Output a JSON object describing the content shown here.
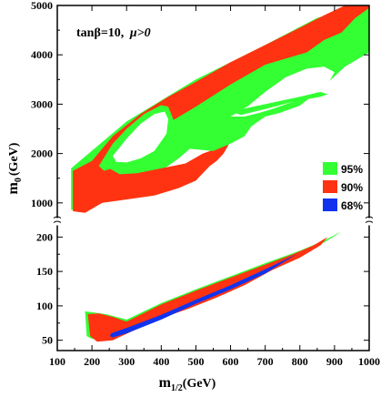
{
  "chart_data": {
    "type": "area",
    "annotation": {
      "pre": "tanβ=10,",
      "post": "μ>0"
    },
    "xlabel": {
      "main": "m",
      "sub": "1/2",
      "unit": "(GeV)"
    },
    "ylabel": {
      "main": "m",
      "sub": "0",
      "unit": "(GeV)"
    },
    "xlim": [
      100,
      1000
    ],
    "x_ticks": [
      100,
      200,
      300,
      400,
      500,
      600,
      700,
      800,
      900,
      1000
    ],
    "x_tick_labels": [
      "100",
      "200",
      "300",
      "400",
      "500",
      "600",
      "700",
      "800",
      "900",
      "1000"
    ],
    "y_axis_split": {
      "lower": {
        "range": [
          35,
          215
        ],
        "ticks": [
          50,
          100,
          150,
          200
        ],
        "tick_labels": [
          "50",
          "100",
          "150",
          "200"
        ]
      },
      "upper": {
        "range": [
          720,
          5000
        ],
        "ticks": [
          1000,
          2000,
          3000,
          4000,
          5000
        ],
        "tick_labels": [
          "1000",
          "2000",
          "3000",
          "4000",
          "5000"
        ]
      }
    },
    "legend": {
      "placement": "right",
      "items": [
        {
          "label": "95%",
          "color": "#33ff33"
        },
        {
          "label": "90%",
          "color": "#ff3311"
        },
        {
          "label": "68%",
          "color": "#1133ee"
        }
      ]
    },
    "regions": [
      {
        "level": "95%",
        "color": "#33ff33",
        "panel": "upper",
        "role": "fill",
        "points": [
          [
            140,
            1700
          ],
          [
            300,
            2650
          ],
          [
            500,
            3500
          ],
          [
            700,
            4200
          ],
          [
            850,
            4750
          ],
          [
            990,
            5000
          ],
          [
            1000,
            5000
          ],
          [
            1000,
            4050
          ],
          [
            930,
            3760
          ],
          [
            860,
            3300
          ],
          [
            780,
            3130
          ],
          [
            700,
            2870
          ],
          [
            600,
            2600
          ],
          [
            500,
            2200
          ],
          [
            450,
            1900
          ],
          [
            380,
            1550
          ],
          [
            290,
            1200
          ],
          [
            240,
            1080
          ],
          [
            175,
            850
          ],
          [
            140,
            860
          ]
        ]
      },
      {
        "level": "90%",
        "color": "#ff3311",
        "panel": "upper",
        "role": "fill",
        "points": [
          [
            145,
            1650
          ],
          [
            200,
            1850
          ],
          [
            260,
            2350
          ],
          [
            340,
            2800
          ],
          [
            420,
            3150
          ],
          [
            500,
            3450
          ],
          [
            600,
            3850
          ],
          [
            700,
            4200
          ],
          [
            800,
            4550
          ],
          [
            870,
            4800
          ],
          [
            930,
            5000
          ],
          [
            1000,
            5000
          ],
          [
            1000,
            4950
          ],
          [
            960,
            4750
          ],
          [
            920,
            4450
          ],
          [
            870,
            4300
          ],
          [
            820,
            4050
          ],
          [
            700,
            3800
          ],
          [
            600,
            3400
          ],
          [
            500,
            2950
          ],
          [
            440,
            2700
          ],
          [
            380,
            2500
          ],
          [
            330,
            2300
          ],
          [
            290,
            2050
          ],
          [
            260,
            1950
          ],
          [
            250,
            1700
          ],
          [
            280,
            1580
          ],
          [
            330,
            1600
          ],
          [
            400,
            1700
          ],
          [
            470,
            1800
          ],
          [
            520,
            2000
          ],
          [
            580,
            2150
          ],
          [
            600,
            2250
          ],
          [
            580,
            2000
          ],
          [
            560,
            1850
          ],
          [
            540,
            1750
          ],
          [
            500,
            1450
          ],
          [
            450,
            1300
          ],
          [
            380,
            1150
          ],
          [
            280,
            1050
          ],
          [
            230,
            1000
          ],
          [
            180,
            800
          ],
          [
            145,
            830
          ]
        ]
      },
      {
        "level": "95%",
        "color": "#33ff33",
        "panel": "upper",
        "role": "fill",
        "points": [
          [
            470,
            2400
          ],
          [
            560,
            2720
          ],
          [
            650,
            3050
          ],
          [
            720,
            3380
          ],
          [
            780,
            3700
          ],
          [
            840,
            3850
          ],
          [
            880,
            3830
          ],
          [
            900,
            3650
          ],
          [
            860,
            3300
          ],
          [
            800,
            2970
          ],
          [
            740,
            2820
          ],
          [
            700,
            2750
          ],
          [
            660,
            2550
          ],
          [
            640,
            2350
          ],
          [
            600,
            2200
          ],
          [
            550,
            2050
          ],
          [
            480,
            2100
          ],
          [
            460,
            2200
          ]
        ]
      },
      {
        "level": "95%",
        "color": "#33ff33",
        "panel": "upper",
        "role": "fill",
        "points": [
          [
            895,
            4350
          ],
          [
            940,
            4520
          ],
          [
            1000,
            4700
          ],
          [
            1000,
            4200
          ],
          [
            960,
            4100
          ],
          [
            910,
            4150
          ]
        ]
      },
      {
        "level": "95%",
        "color": "#33ff33",
        "panel": "upper",
        "role": "fill",
        "points": [
          [
            220,
            1750
          ],
          [
            260,
            2200
          ],
          [
            300,
            2500
          ],
          [
            350,
            2800
          ],
          [
            400,
            2980
          ],
          [
            420,
            2950
          ],
          [
            440,
            2600
          ],
          [
            430,
            2300
          ],
          [
            400,
            2000
          ],
          [
            370,
            1900
          ],
          [
            320,
            1750
          ],
          [
            260,
            1700
          ],
          [
            235,
            1650
          ]
        ]
      },
      {
        "level": "outside",
        "color": "#ffffff",
        "panel": "upper",
        "role": "hole",
        "points": [
          [
            260,
            1950
          ],
          [
            300,
            2300
          ],
          [
            340,
            2600
          ],
          [
            380,
            2800
          ],
          [
            410,
            2850
          ],
          [
            420,
            2700
          ],
          [
            415,
            2400
          ],
          [
            400,
            2250
          ],
          [
            380,
            2050
          ],
          [
            340,
            1900
          ],
          [
            300,
            1820
          ],
          [
            270,
            1830
          ]
        ]
      },
      {
        "level": "outside",
        "color": "#ffffff",
        "panel": "upper",
        "role": "hole",
        "points": [
          [
            600,
            2750
          ],
          [
            650,
            2960
          ],
          [
            700,
            3250
          ],
          [
            760,
            3550
          ],
          [
            820,
            3720
          ],
          [
            870,
            3760
          ],
          [
            900,
            3650
          ],
          [
            880,
            3400
          ],
          [
            840,
            3200
          ],
          [
            780,
            3050
          ],
          [
            720,
            2900
          ],
          [
            680,
            2820
          ],
          [
            640,
            2750
          ]
        ]
      },
      {
        "level": "95%",
        "color": "#33ff33",
        "panel": "upper",
        "role": "fill",
        "points": [
          [
            600,
            2850
          ],
          [
            700,
            3000
          ],
          [
            800,
            3150
          ],
          [
            860,
            3250
          ],
          [
            880,
            3200
          ],
          [
            860,
            3150
          ],
          [
            780,
            3050
          ],
          [
            700,
            2900
          ],
          [
            630,
            2780
          ]
        ]
      },
      {
        "level": "95%",
        "color": "#33ff33",
        "panel": "lower",
        "role": "fill",
        "points": [
          [
            180,
            92
          ],
          [
            240,
            88
          ],
          [
            300,
            80
          ],
          [
            400,
            104
          ],
          [
            500,
            124
          ],
          [
            600,
            143
          ],
          [
            700,
            162
          ],
          [
            800,
            180
          ],
          [
            870,
            195
          ],
          [
            920,
            208
          ],
          [
            905,
            203
          ],
          [
            850,
            186
          ],
          [
            780,
            170
          ],
          [
            700,
            148
          ],
          [
            600,
            126
          ],
          [
            500,
            106
          ],
          [
            400,
            88
          ],
          [
            300,
            68
          ],
          [
            240,
            58
          ],
          [
            200,
            52
          ],
          [
            185,
            56
          ]
        ]
      },
      {
        "level": "90%",
        "color": "#ff3311",
        "panel": "lower",
        "role": "fill",
        "points": [
          [
            188,
            88
          ],
          [
            220,
            89
          ],
          [
            260,
            84
          ],
          [
            300,
            77
          ],
          [
            400,
            102
          ],
          [
            500,
            122
          ],
          [
            600,
            141
          ],
          [
            700,
            160
          ],
          [
            780,
            175
          ],
          [
            840,
            188
          ],
          [
            880,
            200
          ],
          [
            860,
            188
          ],
          [
            800,
            170
          ],
          [
            720,
            152
          ],
          [
            640,
            130
          ],
          [
            560,
            112
          ],
          [
            480,
            96
          ],
          [
            400,
            82
          ],
          [
            320,
            64
          ],
          [
            260,
            50
          ],
          [
            215,
            48
          ],
          [
            195,
            56
          ]
        ]
      },
      {
        "level": "68%",
        "color": "#1133ee",
        "panel": "lower",
        "role": "fill",
        "points": [
          [
            255,
            60
          ],
          [
            300,
            68
          ],
          [
            400,
            87
          ],
          [
            500,
            109
          ],
          [
            600,
            130
          ],
          [
            700,
            153
          ],
          [
            790,
            175
          ],
          [
            800,
            178
          ],
          [
            700,
            147
          ],
          [
            600,
            124
          ],
          [
            500,
            103
          ],
          [
            400,
            80
          ],
          [
            300,
            60
          ],
          [
            260,
            54
          ],
          [
            252,
            56
          ]
        ]
      }
    ]
  }
}
